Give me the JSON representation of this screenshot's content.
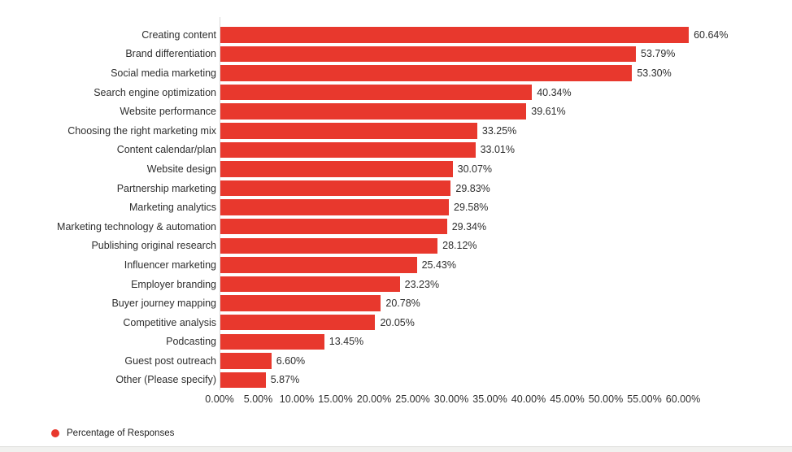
{
  "chart_data": {
    "type": "bar",
    "orientation": "horizontal",
    "categories": [
      "Creating content",
      "Brand differentiation",
      "Social media marketing",
      "Search engine optimization",
      "Website performance",
      "Choosing the right marketing mix",
      "Content calendar/plan",
      "Website design",
      "Partnership marketing",
      "Marketing analytics",
      "Marketing technology & automation",
      "Publishing original research",
      "Influencer marketing",
      "Employer branding",
      "Buyer journey mapping",
      "Competitive analysis",
      "Podcasting",
      "Guest post outreach",
      "Other (Please specify)"
    ],
    "values": [
      60.64,
      53.79,
      53.3,
      40.34,
      39.61,
      33.25,
      33.01,
      30.07,
      29.83,
      29.58,
      29.34,
      28.12,
      25.43,
      23.23,
      20.78,
      20.05,
      13.45,
      6.6,
      5.87
    ],
    "value_labels": [
      "60.64%",
      "53.79%",
      "53.30%",
      "40.34%",
      "39.61%",
      "33.25%",
      "33.01%",
      "30.07%",
      "29.83%",
      "29.58%",
      "29.34%",
      "28.12%",
      "25.43%",
      "23.23%",
      "20.78%",
      "20.05%",
      "13.45%",
      "6.60%",
      "5.87%"
    ],
    "x_tick_labels": [
      "0.00%",
      "5.00%",
      "10.00%",
      "15.00%",
      "20.00%",
      "25.00%",
      "30.00%",
      "35.00%",
      "40.00%",
      "45.00%",
      "50.00%",
      "55.00%",
      "60.00%"
    ],
    "x_tick_values": [
      0,
      5,
      10,
      15,
      20,
      25,
      30,
      35,
      40,
      45,
      50,
      55,
      60
    ],
    "xlim": [
      0,
      60
    ],
    "grid": false,
    "bar_color": "#e8382d",
    "legend": {
      "label": "Percentage of Responses",
      "marker_color": "#e8382d",
      "position": "bottom-left"
    },
    "title": "",
    "xlabel": "",
    "ylabel": ""
  }
}
